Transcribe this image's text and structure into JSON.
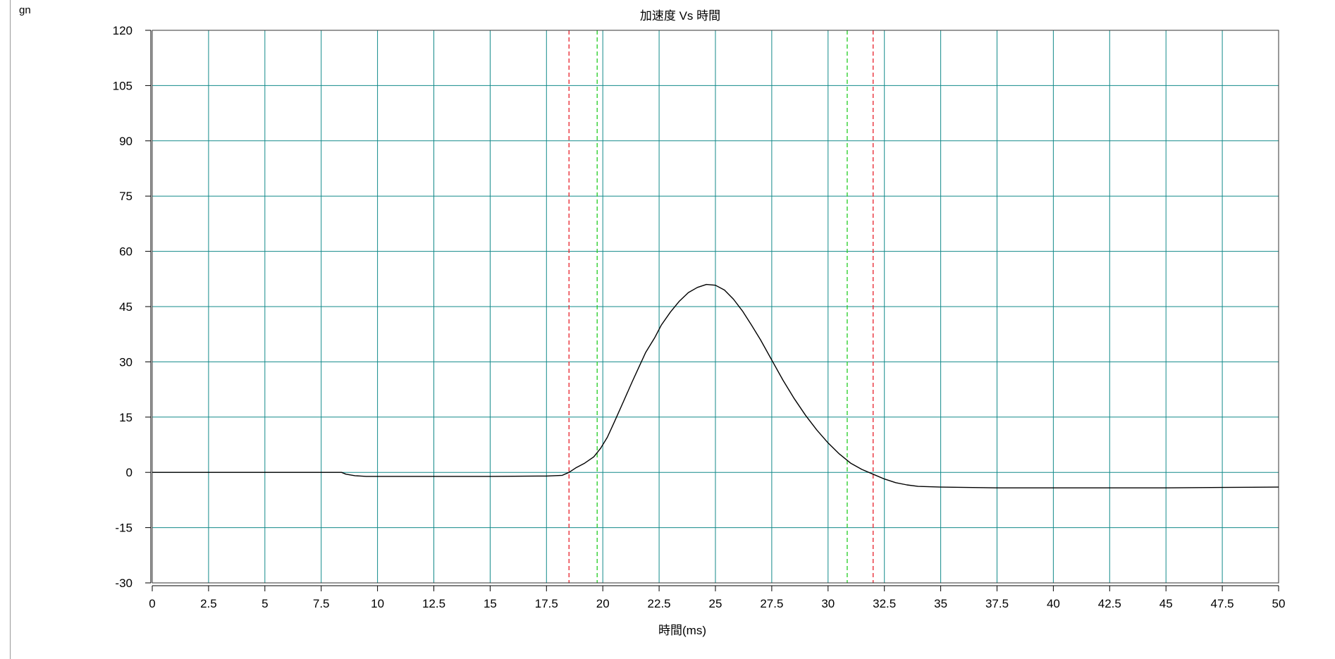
{
  "chart_data": {
    "type": "line",
    "title": "加速度 Vs 時間",
    "xlabel": "時間(ms)",
    "ylabel": "gn",
    "xlim": [
      0,
      50
    ],
    "ylim": [
      -30,
      120
    ],
    "xticks": [
      "0",
      "2.5",
      "5",
      "7.5",
      "10",
      "12.5",
      "15",
      "17.5",
      "20",
      "22.5",
      "25",
      "27.5",
      "30",
      "32.5",
      "35",
      "37.5",
      "40",
      "42.5",
      "45",
      "47.5",
      "50"
    ],
    "yticks": [
      "120",
      "105",
      "90",
      "75",
      "60",
      "45",
      "30",
      "15",
      "0",
      "-15",
      "-30"
    ],
    "grid": true,
    "colors": {
      "grid": "#138a8a",
      "series": "#000000",
      "outer_marker": "#e8202a",
      "inner_marker": "#22cc22",
      "axis": "#000000"
    },
    "markers": [
      {
        "x": 18.5,
        "color": "#e8202a",
        "style": "dashed"
      },
      {
        "x": 19.75,
        "color": "#22cc22",
        "style": "dashed"
      },
      {
        "x": 30.85,
        "color": "#22cc22",
        "style": "dashed"
      },
      {
        "x": 32.0,
        "color": "#e8202a",
        "style": "dashed"
      }
    ],
    "series": [
      {
        "x": [
          0,
          8.4,
          8.6,
          9.0,
          9.5,
          10.0,
          12.5,
          15.0,
          17.5,
          18.2,
          18.5,
          18.8,
          19.2,
          19.6,
          19.9,
          20.2,
          20.5,
          20.9,
          21.3,
          21.6,
          21.9,
          22.3,
          22.6,
          23.0,
          23.4,
          23.8,
          24.2,
          24.6,
          25.0,
          25.4,
          25.8,
          26.2,
          26.6,
          27.0,
          27.5,
          28.0,
          28.5,
          29.0,
          29.5,
          30.0,
          30.5,
          31.0,
          31.5,
          32.0,
          32.5,
          33.0,
          33.5,
          34.0,
          35.0,
          37.5,
          40.0,
          42.5,
          45.0,
          47.5,
          50.0
        ],
        "values": [
          0,
          0,
          -0.5,
          -0.9,
          -1.1,
          -1.1,
          -1.1,
          -1.1,
          -1.0,
          -0.8,
          0.0,
          1.2,
          2.5,
          4.2,
          6.5,
          9.5,
          13.5,
          19.0,
          24.5,
          28.5,
          32.5,
          36.5,
          40.0,
          43.5,
          46.5,
          48.8,
          50.2,
          51.0,
          50.8,
          49.5,
          47.0,
          43.8,
          40.0,
          36.0,
          30.5,
          25.0,
          20.0,
          15.5,
          11.5,
          8.0,
          5.0,
          2.5,
          0.8,
          -0.5,
          -1.8,
          -2.8,
          -3.4,
          -3.8,
          -4.0,
          -4.2,
          -4.2,
          -4.2,
          -4.2,
          -4.1,
          -4.0
        ]
      }
    ]
  }
}
